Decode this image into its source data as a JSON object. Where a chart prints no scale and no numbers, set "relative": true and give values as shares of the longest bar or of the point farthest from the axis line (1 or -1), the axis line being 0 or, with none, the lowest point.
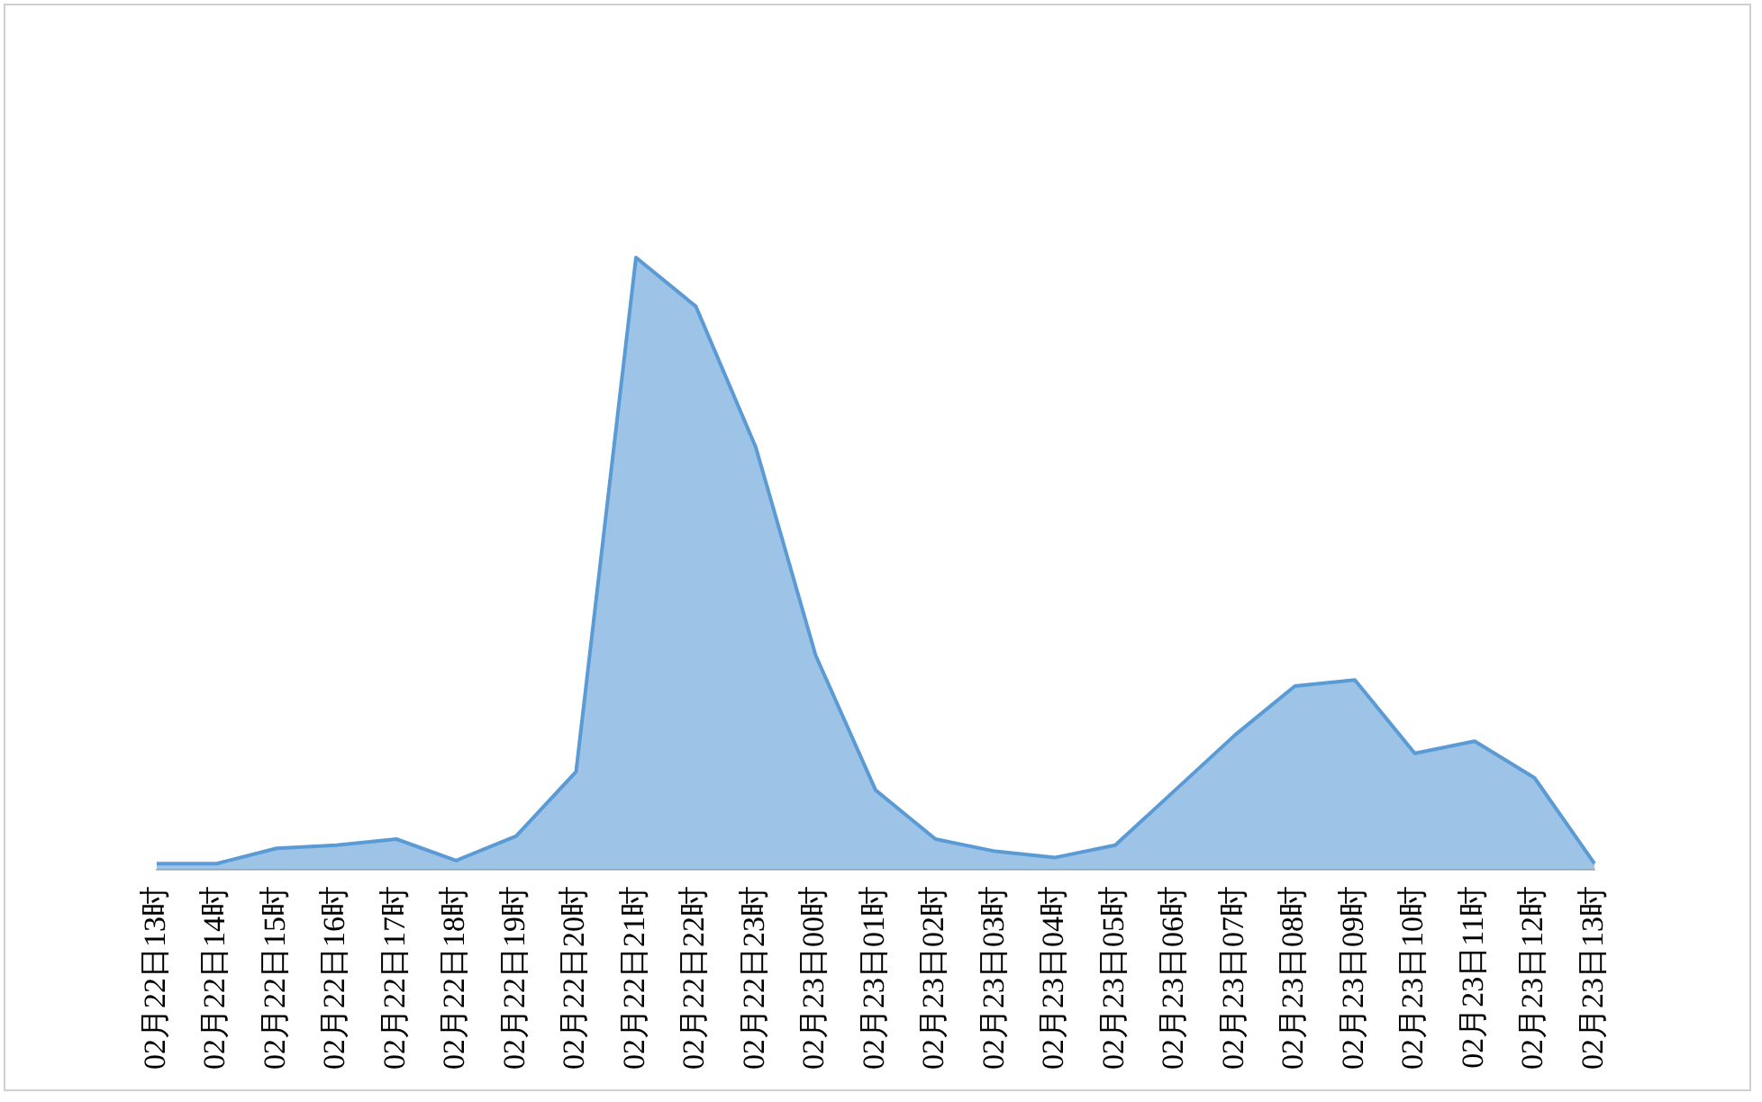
{
  "chart_data": {
    "type": "area",
    "relative": true,
    "categories": [
      "02月22日13时",
      "02月22日14时",
      "02月22日15时",
      "02月22日16时",
      "02月22日17时",
      "02月22日18时",
      "02月22日19时",
      "02月22日20时",
      "02月22日21时",
      "02月22日22时",
      "02月22日23时",
      "02月23日00时",
      "02月23日01时",
      "02月23日02时",
      "02月23日03时",
      "02月23日04时",
      "02月23日05时",
      "02月23日06时",
      "02月23日07时",
      "02月23日08时",
      "02月23日09时",
      "02月23日10时",
      "02月23日11时",
      "02月23日12时",
      "02月23日13时"
    ],
    "values": [
      0.01,
      0.01,
      0.035,
      0.04,
      0.05,
      0.015,
      0.055,
      0.16,
      1,
      0.92,
      0.69,
      0.35,
      0.13,
      0.05,
      0.03,
      0.02,
      0.04,
      0.13,
      0.22,
      0.3,
      0.31,
      0.19,
      0.21,
      0.15,
      0.01
    ],
    "color": "#5b9bd5",
    "legend": false,
    "grid": false
  }
}
